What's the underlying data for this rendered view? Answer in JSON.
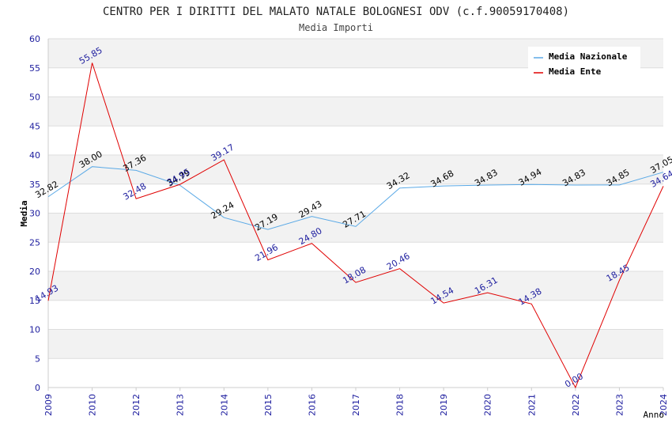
{
  "title": "CENTRO PER I DIRITTI DEL MALATO NATALE BOLOGNESI ODV (c.f.90059170408)",
  "subtitle": "Media Importi",
  "chart_data": {
    "type": "line",
    "ylabel": "Media",
    "xlabel": "Anno",
    "ylim": [
      0,
      60
    ],
    "yticks": [
      0,
      5,
      10,
      15,
      20,
      25,
      30,
      35,
      40,
      45,
      50,
      55,
      60
    ],
    "categories": [
      "2009",
      "2010",
      "2012",
      "2013",
      "2014",
      "2015",
      "2016",
      "2017",
      "2018",
      "2019",
      "2020",
      "2021",
      "2022",
      "2023",
      "2024"
    ],
    "grid": true,
    "legend_position": "top-right",
    "series": [
      {
        "name": "Media Nazionale",
        "color": "#5aa9e6",
        "label_color": "#000000",
        "values": [
          32.82,
          38.0,
          37.36,
          34.79,
          29.24,
          27.19,
          29.43,
          27.71,
          34.32,
          34.68,
          34.83,
          34.94,
          34.83,
          34.85,
          37.05
        ],
        "labels": [
          "32.82",
          "38.00",
          "37.36",
          "34.79",
          "29.24",
          "27.19",
          "29.43",
          "27.71",
          "34.32",
          "34.68",
          "34.83",
          "34.94",
          "34.83",
          "34.85",
          "37.05"
        ]
      },
      {
        "name": "Media Ente",
        "color": "#e00000",
        "label_color": "#1c1c9e",
        "values": [
          14.93,
          55.85,
          32.48,
          34.95,
          39.17,
          21.96,
          24.8,
          18.08,
          20.46,
          14.54,
          16.31,
          14.38,
          0.0,
          18.45,
          34.64
        ],
        "labels": [
          "14.93",
          "55.85",
          "32.48",
          "34.95",
          "39.17",
          "21.96",
          "24.80",
          "18.08",
          "20.46",
          "14.54",
          "16.31",
          "14.38",
          "0.00",
          "18.45",
          "34.64"
        ]
      }
    ]
  }
}
